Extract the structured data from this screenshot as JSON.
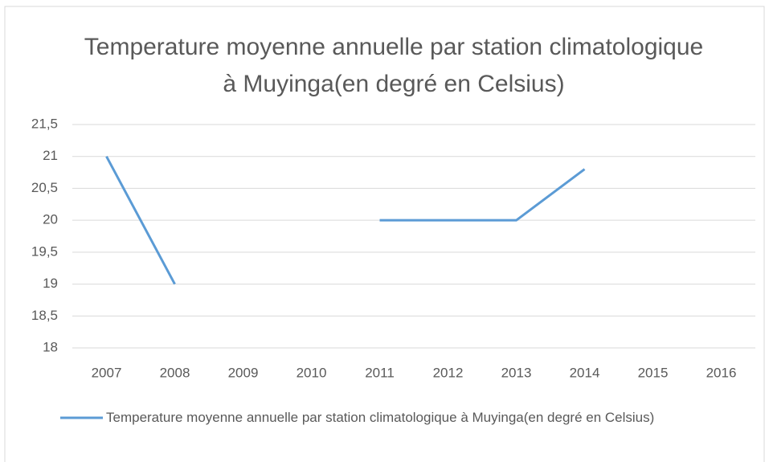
{
  "chart_data": {
    "type": "line",
    "title": "Temperature moyenne annuelle par station climatologique à Muyinga(en degré en Celsius)",
    "categories": [
      "2007",
      "2008",
      "2009",
      "2010",
      "2011",
      "2012",
      "2013",
      "2014",
      "2015",
      "2016"
    ],
    "series": [
      {
        "name": "Temperature moyenne annuelle par station climatologique à Muyinga(en degré en Celsius)",
        "color": "#5b9bd5",
        "values": [
          21,
          19,
          null,
          null,
          20,
          20,
          20,
          20.8,
          null,
          null
        ]
      }
    ],
    "ylim": [
      18,
      21.5
    ],
    "yticks": [
      18,
      {
        "value": 18.5,
        "label": "18,5"
      },
      19,
      {
        "value": 19.5,
        "label": "19,5"
      },
      20,
      {
        "value": 20.5,
        "label": "20,5"
      },
      21,
      {
        "value": 21.5,
        "label": "21,5"
      }
    ],
    "grid": true,
    "legend": "bottom"
  }
}
